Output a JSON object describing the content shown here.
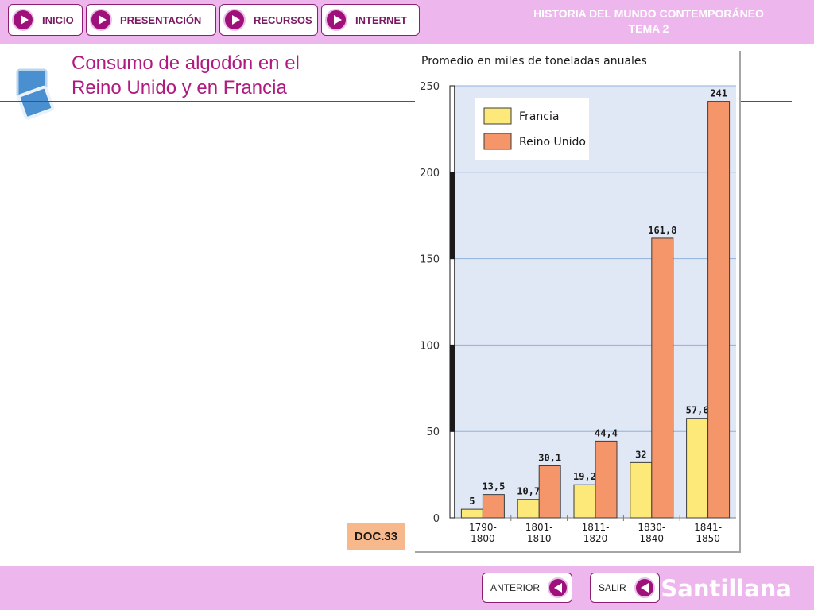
{
  "nav": {
    "items": [
      {
        "label": "INICIO"
      },
      {
        "label": "PRESENTACIÓN"
      },
      {
        "label": "RECURSOS"
      },
      {
        "label": "INTERNET"
      }
    ]
  },
  "header": {
    "title_line1": "HISTORIA DEL MUNDO CONTEMPORÁNEO",
    "title_line2": "TEMA 2"
  },
  "heading": {
    "line1": "Consumo de algodón en el",
    "line2": "Reino Unido y en Francia"
  },
  "doc_label": "DOC.33",
  "footer": {
    "prev_label": "ANTERIOR",
    "exit_label": "SALIR",
    "brand": "Santillana"
  },
  "colors": {
    "accent": "#b01a80",
    "bar_bg": "#edb7ee",
    "francia": "#fde97a",
    "reino_unido": "#f5956a",
    "plot_bg": "#e0e8f6"
  },
  "chart_data": {
    "type": "bar",
    "title": "Promedio en miles de toneladas anuales",
    "categories": [
      [
        "1790-",
        "1800"
      ],
      [
        "1801-",
        "1810"
      ],
      [
        "1811-",
        "1820"
      ],
      [
        "1830-",
        "1840"
      ],
      [
        "1841-",
        "1850"
      ]
    ],
    "series": [
      {
        "name": "Francia",
        "values": [
          5,
          10.7,
          19.2,
          32,
          57.6
        ],
        "labels": [
          "5",
          "10,7",
          "19,2",
          "32",
          "57,6"
        ]
      },
      {
        "name": "Reino Unido",
        "values": [
          13.5,
          30.1,
          44.4,
          161.8,
          241
        ],
        "labels": [
          "13,5",
          "30,1",
          "44,4",
          "161,8",
          "241"
        ]
      }
    ],
    "yticks": [
      0,
      50,
      100,
      150,
      200,
      250
    ],
    "ylim": [
      0,
      250
    ],
    "grid": true,
    "legend_position": "top-left"
  }
}
